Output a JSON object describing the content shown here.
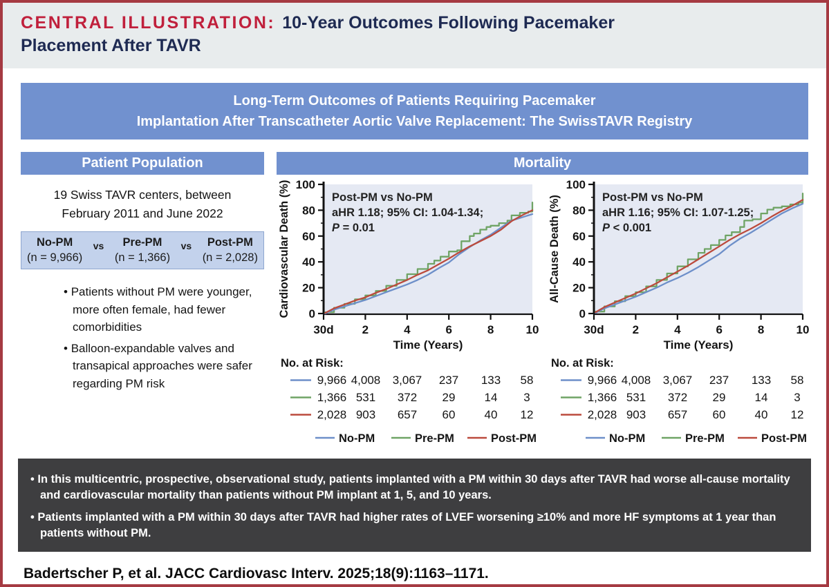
{
  "header": {
    "label": "CENTRAL ILLUSTRATION:",
    "title_line1": "10-Year Outcomes Following Pacemaker",
    "title_line2": "Placement After TAVR"
  },
  "banner": {
    "line1": "Long-Term Outcomes of Patients Requiring Pacemaker",
    "line2": "Implantation After Transcatheter Aortic Valve Replacement: The SwissTAVR Registry"
  },
  "patient_panel": {
    "title": "Patient Population",
    "intro": "19 Swiss TAVR centers, between February 2011 and June 2022",
    "vs": "vs",
    "groups": [
      {
        "name": "No-PM",
        "n": "(n = 9,966)"
      },
      {
        "name": "Pre-PM",
        "n": "(n = 1,366)"
      },
      {
        "name": "Post-PM",
        "n": "(n = 2,028)"
      }
    ],
    "bullets": [
      "Patients without PM were younger, more often female, had fewer comorbidities",
      "Balloon-expandable valves and transapical approaches were safer regarding PM risk"
    ]
  },
  "mortality_panel": {
    "title": "Mortality"
  },
  "colors": {
    "no_pm": "#6d8fc9",
    "pre_pm": "#6fa465",
    "post_pm": "#bb4a3c",
    "plot_bg": "#e5e9f3",
    "banner_blue": "#7191cf",
    "table_blue": "#c3d2ec",
    "border_red": "#a53a42",
    "title_red": "#c0203c",
    "title_navy": "#1e2a52",
    "summary_bg": "#3e3e40"
  },
  "chart_data": [
    {
      "type": "line",
      "name": "cardiovascular-death",
      "ylabel": "Cardiovascular Death (%)",
      "xlabel": "Time (Years)",
      "x_tick_labels": [
        "30d",
        "2",
        "4",
        "6",
        "8",
        "10"
      ],
      "x_tick_years": [
        0,
        2,
        4,
        6,
        8,
        10
      ],
      "y_ticks": [
        0,
        20,
        40,
        60,
        80,
        100
      ],
      "ylim": [
        0,
        100
      ],
      "annotation": {
        "line1": "Post-PM vs No-PM",
        "line2": "aHR 1.18; 95% CI: 1.04-1.34;",
        "p_italic": "P",
        "p_rest": " = 0.01"
      },
      "series": [
        {
          "name": "Pre-PM",
          "color": "#6fa465",
          "step": true,
          "points": [
            [
              0.08,
              1
            ],
            [
              0.5,
              4.5
            ],
            [
              1,
              7.5
            ],
            [
              1.5,
              11
            ],
            [
              2,
              14
            ],
            [
              2.5,
              17.5
            ],
            [
              3,
              21.5
            ],
            [
              3.5,
              26
            ],
            [
              4,
              30.5
            ],
            [
              4.5,
              34.5
            ],
            [
              5,
              38.5
            ],
            [
              5.3,
              41
            ],
            [
              5.6,
              44
            ],
            [
              6,
              48
            ],
            [
              6.4,
              49
            ],
            [
              6.6,
              56
            ],
            [
              7,
              60
            ],
            [
              7.2,
              62
            ],
            [
              7.5,
              65
            ],
            [
              7.8,
              67
            ],
            [
              8,
              68
            ],
            [
              8.4,
              70
            ],
            [
              8.8,
              72
            ],
            [
              9,
              76
            ],
            [
              9.4,
              78
            ],
            [
              9.8,
              79
            ],
            [
              10,
              86
            ]
          ]
        },
        {
          "name": "No-PM",
          "color": "#6d8fc9",
          "step": false,
          "points": [
            [
              0.08,
              0
            ],
            [
              0.5,
              3
            ],
            [
              1,
              5.5
            ],
            [
              1.5,
              8
            ],
            [
              2,
              10.5
            ],
            [
              2.5,
              13.5
            ],
            [
              3,
              16.5
            ],
            [
              3.5,
              19.5
            ],
            [
              4,
              22.5
            ],
            [
              4.5,
              26
            ],
            [
              5,
              30
            ],
            [
              5.5,
              35
            ],
            [
              6,
              39.5
            ],
            [
              6.5,
              46
            ],
            [
              7,
              51.5
            ],
            [
              7.5,
              56.5
            ],
            [
              8,
              61
            ],
            [
              8.5,
              66.5
            ],
            [
              9,
              72
            ],
            [
              9.3,
              73.5
            ],
            [
              9.6,
              75
            ],
            [
              10,
              77
            ]
          ]
        },
        {
          "name": "Post-PM",
          "color": "#bb4a3c",
          "step": false,
          "points": [
            [
              0.08,
              0.5
            ],
            [
              0.5,
              4
            ],
            [
              1,
              7
            ],
            [
              1.5,
              10
            ],
            [
              2,
              12.5
            ],
            [
              2.5,
              16
            ],
            [
              3,
              19
            ],
            [
              3.5,
              22.5
            ],
            [
              4,
              26
            ],
            [
              4.5,
              30
            ],
            [
              5,
              33.5
            ],
            [
              5.5,
              38
            ],
            [
              6,
              42.5
            ],
            [
              6.5,
              47.5
            ],
            [
              7,
              52
            ],
            [
              7.5,
              56
            ],
            [
              8,
              60
            ],
            [
              8.5,
              65
            ],
            [
              9,
              71.5
            ],
            [
              9.5,
              76
            ],
            [
              10,
              80
            ]
          ]
        }
      ],
      "at_risk": {
        "label": "No. at Risk:",
        "rows": [
          {
            "name": "No-PM",
            "color": "#6d8fc9",
            "values": [
              "9,966",
              "4,008",
              "3,067",
              "237",
              "133",
              "58"
            ]
          },
          {
            "name": "Pre-PM",
            "color": "#6fa465",
            "values": [
              "1,366",
              "531",
              "372",
              "29",
              "14",
              "3"
            ]
          },
          {
            "name": "Post-PM",
            "color": "#bb4a3c",
            "values": [
              "2,028",
              "903",
              "657",
              "60",
              "40",
              "12"
            ]
          }
        ]
      },
      "legend": [
        {
          "name": "No-PM",
          "color": "#6d8fc9"
        },
        {
          "name": "Pre-PM",
          "color": "#6fa465"
        },
        {
          "name": "Post-PM",
          "color": "#bb4a3c"
        }
      ]
    },
    {
      "type": "line",
      "name": "all-cause-death",
      "ylabel": "All-Cause Death (%)",
      "xlabel": "Time (Years)",
      "x_tick_labels": [
        "30d",
        "2",
        "4",
        "6",
        "8",
        "10"
      ],
      "x_tick_years": [
        0,
        2,
        4,
        6,
        8,
        10
      ],
      "y_ticks": [
        0,
        20,
        40,
        60,
        80,
        100
      ],
      "ylim": [
        0,
        100
      ],
      "annotation": {
        "line1": "Post-PM vs No-PM",
        "line2": "aHR 1.16; 95% CI: 1.07-1.25;",
        "p_italic": "P",
        "p_rest": " < 0.001"
      },
      "series": [
        {
          "name": "Pre-PM",
          "color": "#6fa465",
          "step": true,
          "points": [
            [
              0.08,
              1.5
            ],
            [
              0.5,
              5.5
            ],
            [
              1,
              9.5
            ],
            [
              1.5,
              13.5
            ],
            [
              2,
              16.5
            ],
            [
              2.5,
              21
            ],
            [
              3,
              26
            ],
            [
              3.5,
              31
            ],
            [
              4,
              36.5
            ],
            [
              4.5,
              42
            ],
            [
              5,
              47
            ],
            [
              5.3,
              50
            ],
            [
              5.6,
              53
            ],
            [
              6,
              57
            ],
            [
              6.3,
              60.5
            ],
            [
              6.6,
              63
            ],
            [
              7,
              67
            ],
            [
              7.2,
              72
            ],
            [
              7.6,
              73
            ],
            [
              8,
              77.5
            ],
            [
              8.3,
              80.5
            ],
            [
              8.6,
              82
            ],
            [
              9,
              83
            ],
            [
              9.4,
              84.5
            ],
            [
              9.8,
              86
            ],
            [
              10,
              93
            ]
          ]
        },
        {
          "name": "No-PM",
          "color": "#6d8fc9",
          "step": false,
          "points": [
            [
              0.08,
              0.5
            ],
            [
              0.5,
              4
            ],
            [
              1,
              7
            ],
            [
              1.5,
              10
            ],
            [
              2,
              13
            ],
            [
              2.5,
              16.5
            ],
            [
              3,
              20
            ],
            [
              3.5,
              24
            ],
            [
              4,
              27.5
            ],
            [
              4.5,
              31.5
            ],
            [
              5,
              36
            ],
            [
              5.5,
              41
            ],
            [
              6,
              46
            ],
            [
              6.5,
              52.5
            ],
            [
              7,
              58
            ],
            [
              7.5,
              62.5
            ],
            [
              8,
              67.5
            ],
            [
              8.5,
              72.5
            ],
            [
              9,
              77.5
            ],
            [
              9.5,
              81.5
            ],
            [
              10,
              85
            ]
          ]
        },
        {
          "name": "Post-PM",
          "color": "#bb4a3c",
          "step": false,
          "points": [
            [
              0.08,
              1
            ],
            [
              0.5,
              5
            ],
            [
              1,
              8.5
            ],
            [
              1.5,
              12
            ],
            [
              2,
              15.5
            ],
            [
              2.5,
              19.5
            ],
            [
              3,
              23.5
            ],
            [
              3.5,
              28
            ],
            [
              4,
              32.5
            ],
            [
              4.5,
              37
            ],
            [
              5,
              42
            ],
            [
              5.5,
              47
            ],
            [
              6,
              52
            ],
            [
              6.5,
              57
            ],
            [
              7,
              61.5
            ],
            [
              7.5,
              65.5
            ],
            [
              8,
              70
            ],
            [
              8.5,
              75
            ],
            [
              9,
              79.5
            ],
            [
              9.5,
              83.5
            ],
            [
              10,
              88
            ]
          ]
        }
      ],
      "at_risk": {
        "label": "No. at Risk:",
        "rows": [
          {
            "name": "No-PM",
            "color": "#6d8fc9",
            "values": [
              "9,966",
              "4,008",
              "3,067",
              "237",
              "133",
              "58"
            ]
          },
          {
            "name": "Pre-PM",
            "color": "#6fa465",
            "values": [
              "1,366",
              "531",
              "372",
              "29",
              "14",
              "3"
            ]
          },
          {
            "name": "Post-PM",
            "color": "#bb4a3c",
            "values": [
              "2,028",
              "903",
              "657",
              "60",
              "40",
              "12"
            ]
          }
        ]
      },
      "legend": [
        {
          "name": "No-PM",
          "color": "#6d8fc9"
        },
        {
          "name": "Pre-PM",
          "color": "#6fa465"
        },
        {
          "name": "Post-PM",
          "color": "#bb4a3c"
        }
      ]
    }
  ],
  "summary_box": {
    "bullets": [
      "In this multicentric, prospective, observational study, patients implanted with a PM within 30 days after TAVR had worse all-cause mortality and cardiovascular mortality than patients without PM implant at 1, 5, and 10 years.",
      "Patients implanted with a PM within 30 days after TAVR had higher rates of LVEF worsening ≥10% and more HF symptoms at 1 year than patients without PM."
    ]
  },
  "citation": "Badertscher P, et al. JACC Cardiovasc Interv. 2025;18(9):1163–1171."
}
